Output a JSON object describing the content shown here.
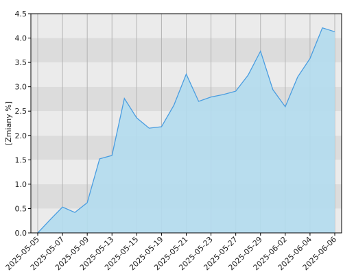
{
  "chart_data": {
    "type": "area",
    "y_label": "[Zmiany %]",
    "categories": [
      "2025-05-05",
      null,
      "2025-05-07",
      null,
      "2025-05-09",
      null,
      "2025-05-13",
      null,
      "2025-05-15",
      null,
      "2025-05-19",
      null,
      "2025-05-21",
      null,
      "2025-05-23",
      null,
      "2025-05-27",
      null,
      "2025-05-29",
      null,
      "2025-06-02",
      null,
      "2025-06-04",
      null,
      "2025-06-06"
    ],
    "values": [
      0.0,
      0.27,
      0.53,
      0.42,
      0.62,
      1.52,
      1.59,
      2.76,
      2.36,
      2.15,
      2.18,
      2.62,
      3.26,
      2.7,
      2.79,
      2.84,
      2.91,
      3.24,
      3.73,
      2.94,
      2.59,
      3.2,
      3.58,
      4.21,
      4.13
    ],
    "color": "#4a9de0",
    "fill": "#b3dcee",
    "ylim": [
      0,
      4.5
    ],
    "yticks": [
      {
        "value": 0,
        "label": "0.0"
      },
      {
        "value": 0.5,
        "label": "0.5"
      },
      {
        "value": 1,
        "label": "1.0"
      },
      {
        "value": 1.5,
        "label": "1.5"
      },
      {
        "value": 2,
        "label": "2.0"
      },
      {
        "value": 2.5,
        "label": "2.5"
      },
      {
        "value": 3,
        "label": "3.0"
      },
      {
        "value": 3.5,
        "label": "3.5"
      },
      {
        "value": 4,
        "label": "4.0"
      },
      {
        "value": 4.5,
        "label": "4.5"
      }
    ],
    "grid": true
  }
}
